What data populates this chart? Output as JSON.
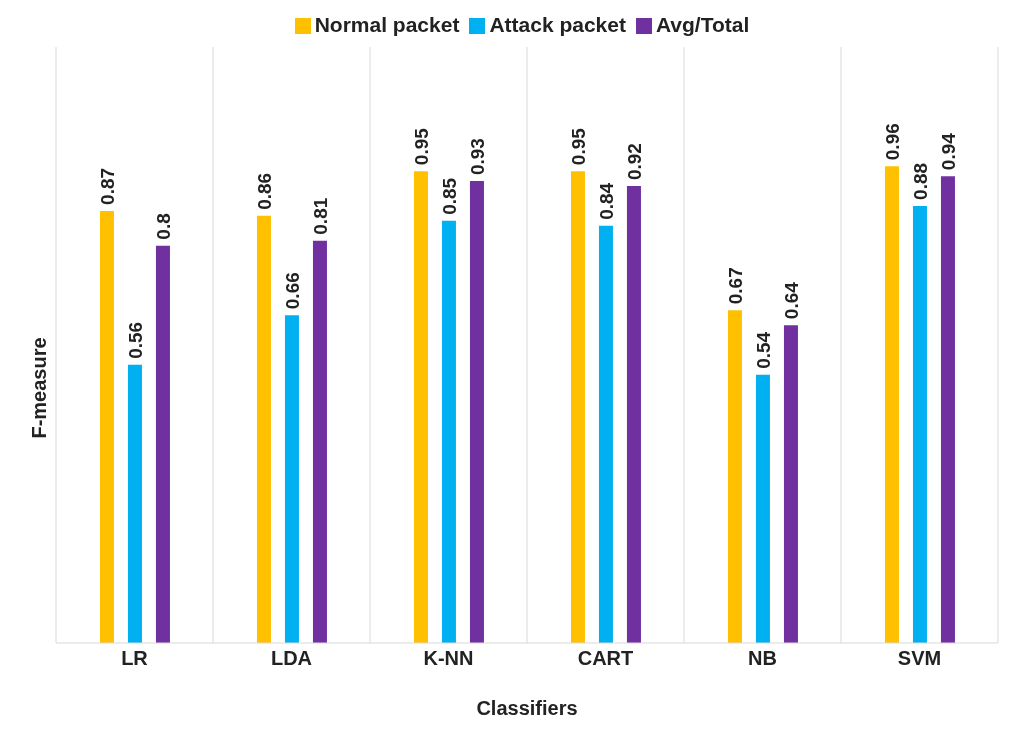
{
  "chart_data": {
    "type": "bar",
    "xlabel": "Classifiers",
    "ylabel": "F-measure",
    "categories": [
      "LR",
      "LDA",
      "K-NN",
      "CART",
      "NB",
      "SVM"
    ],
    "series": [
      {
        "name": "Normal packet",
        "color": "#ffc000",
        "values": [
          0.87,
          0.86,
          0.95,
          0.95,
          0.67,
          0.96
        ]
      },
      {
        "name": "Attack packet",
        "color": "#00b0f0",
        "values": [
          0.56,
          0.66,
          0.85,
          0.84,
          0.54,
          0.88
        ]
      },
      {
        "name": "Avg/Total",
        "color": "#7030a0",
        "values": [
          0.8,
          0.81,
          0.93,
          0.92,
          0.64,
          0.94
        ]
      }
    ],
    "data_labels": true,
    "grid": "x",
    "legend": "top"
  }
}
